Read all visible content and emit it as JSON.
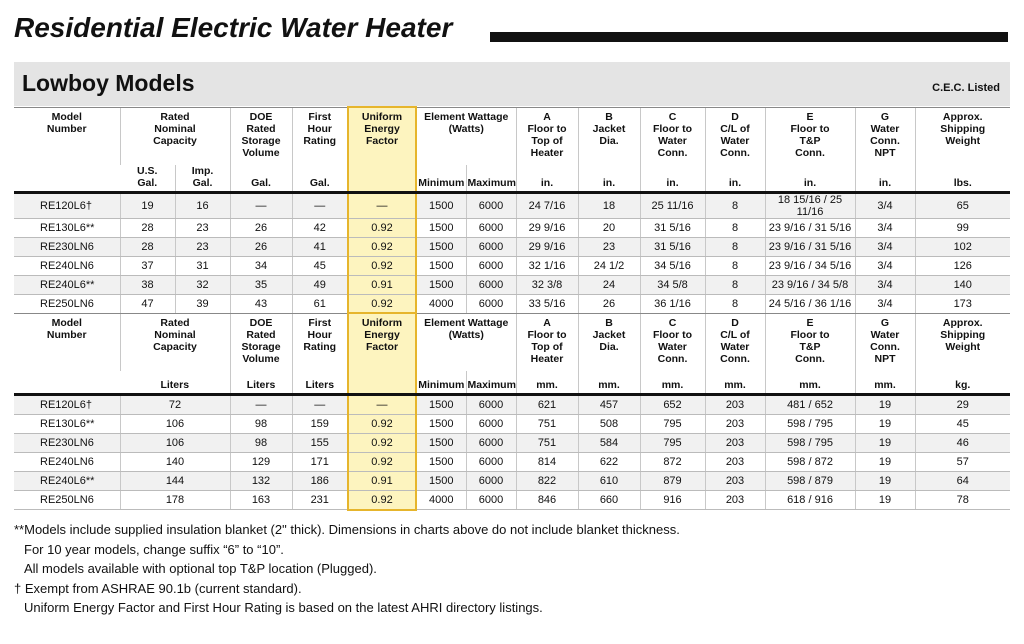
{
  "header": {
    "title": "Residential Electric Water Heater",
    "subtitle": "Lowboy Models",
    "note": "C.E.C. Listed"
  },
  "tables": [
    {
      "head": [
        {
          "label": "Model\nNumber"
        },
        {
          "label": "Rated\nNominal\nCapacity",
          "units": [
            "U.S.\nGal.",
            "Imp.\nGal."
          ]
        },
        {
          "label": "DOE\nRated\nStorage\nVolume",
          "units": [
            "Gal."
          ]
        },
        {
          "label": "First\nHour\nRating",
          "units": [
            "Gal."
          ]
        },
        {
          "label": "Uniform\nEnergy\nFactor"
        },
        {
          "label": "Element Wattage\n(Watts)",
          "units": [
            "Minimum",
            "Maximum"
          ]
        },
        {
          "label": "A\nFloor to\nTop of\nHeater",
          "units": [
            "in."
          ]
        },
        {
          "label": "B\nJacket\nDia.",
          "units": [
            "in."
          ]
        },
        {
          "label": "C\nFloor to\nWater\nConn.",
          "units": [
            "in."
          ]
        },
        {
          "label": "D\nC/L of\nWater\nConn.",
          "units": [
            "in."
          ]
        },
        {
          "label": "E\nFloor to\nT&P\nConn.",
          "units": [
            "in."
          ]
        },
        {
          "label": "G\nWater\nConn.\nNPT",
          "units": [
            "in."
          ]
        },
        {
          "label": "Approx.\nShipping\nWeight",
          "units": [
            "lbs."
          ]
        }
      ],
      "rows": [
        [
          "RE120L6†",
          "19",
          "16",
          "—",
          "—",
          "—",
          "1500",
          "6000",
          "24 7/16",
          "18",
          "25 11/16",
          "8",
          "18 15/16 / 25 11/16",
          "3/4",
          "65"
        ],
        [
          "RE130L6**",
          "28",
          "23",
          "26",
          "42",
          "0.92",
          "1500",
          "6000",
          "29 9/16",
          "20",
          "31 5/16",
          "8",
          "23 9/16 / 31 5/16",
          "3/4",
          "99"
        ],
        [
          "RE230LN6",
          "28",
          "23",
          "26",
          "41",
          "0.92",
          "1500",
          "6000",
          "29 9/16",
          "23",
          "31 5/16",
          "8",
          "23 9/16 / 31 5/16",
          "3/4",
          "102"
        ],
        [
          "RE240LN6",
          "37",
          "31",
          "34",
          "45",
          "0.92",
          "1500",
          "6000",
          "32 1/16",
          "24 1/2",
          "34 5/16",
          "8",
          "23 9/16 / 34 5/16",
          "3/4",
          "126"
        ],
        [
          "RE240L6**",
          "38",
          "32",
          "35",
          "49",
          "0.91",
          "1500",
          "6000",
          "32 3/8",
          "24",
          "34 5/8",
          "8",
          "23 9/16 / 34 5/8",
          "3/4",
          "140"
        ],
        [
          "RE250LN6",
          "47",
          "39",
          "43",
          "61",
          "0.92",
          "4000",
          "6000",
          "33 5/16",
          "26",
          "36 1/16",
          "8",
          "24 5/16 / 36 1/16",
          "3/4",
          "173"
        ]
      ]
    },
    {
      "head": [
        {
          "label": "Model\nNumber"
        },
        {
          "label": "Rated\nNominal\nCapacity",
          "units": [
            "Liters"
          ]
        },
        {
          "label": "DOE\nRated\nStorage\nVolume",
          "units": [
            "Liters"
          ]
        },
        {
          "label": "First\nHour\nRating",
          "units": [
            "Liters"
          ]
        },
        {
          "label": "Uniform\nEnergy\nFactor"
        },
        {
          "label": "Element Wattage\n(Watts)",
          "units": [
            "Minimum",
            "Maximum"
          ]
        },
        {
          "label": "A\nFloor to\nTop of\nHeater",
          "units": [
            "mm."
          ]
        },
        {
          "label": "B\nJacket\nDia.",
          "units": [
            "mm."
          ]
        },
        {
          "label": "C\nFloor to\nWater\nConn.",
          "units": [
            "mm."
          ]
        },
        {
          "label": "D\nC/L of\nWater\nConn.",
          "units": [
            "mm."
          ]
        },
        {
          "label": "E\nFloor to\nT&P\nConn.",
          "units": [
            "mm."
          ]
        },
        {
          "label": "G\nWater\nConn.\nNPT",
          "units": [
            "mm."
          ]
        },
        {
          "label": "Approx.\nShipping\nWeight",
          "units": [
            "kg."
          ]
        }
      ],
      "rows": [
        [
          "RE120L6†",
          "72",
          "—",
          "—",
          "—",
          "1500",
          "6000",
          "621",
          "457",
          "652",
          "203",
          "481 / 652",
          "19",
          "29"
        ],
        [
          "RE130L6**",
          "106",
          "98",
          "159",
          "0.92",
          "1500",
          "6000",
          "751",
          "508",
          "795",
          "203",
          "598 / 795",
          "19",
          "45"
        ],
        [
          "RE230LN6",
          "106",
          "98",
          "155",
          "0.92",
          "1500",
          "6000",
          "751",
          "584",
          "795",
          "203",
          "598 / 795",
          "19",
          "46"
        ],
        [
          "RE240LN6",
          "140",
          "129",
          "171",
          "0.92",
          "1500",
          "6000",
          "814",
          "622",
          "872",
          "203",
          "598 / 872",
          "19",
          "57"
        ],
        [
          "RE240L6**",
          "144",
          "132",
          "186",
          "0.91",
          "1500",
          "6000",
          "822",
          "610",
          "879",
          "203",
          "598 / 879",
          "19",
          "64"
        ],
        [
          "RE250LN6",
          "178",
          "163",
          "231",
          "0.92",
          "4000",
          "6000",
          "846",
          "660",
          "916",
          "203",
          "618 / 916",
          "19",
          "78"
        ]
      ]
    }
  ],
  "footnotes": [
    "**Models include supplied insulation blanket (2\" thick). Dimensions in charts above do not include blanket thickness.",
    "For 10 year models, change suffix “6” to “10”.",
    "All models available with optional top T&P location (Plugged).",
    "† Exempt from ASHRAE 90.1b (current standard).",
    "Uniform Energy Factor and First Hour Rating is based on the latest AHRI directory listings."
  ]
}
